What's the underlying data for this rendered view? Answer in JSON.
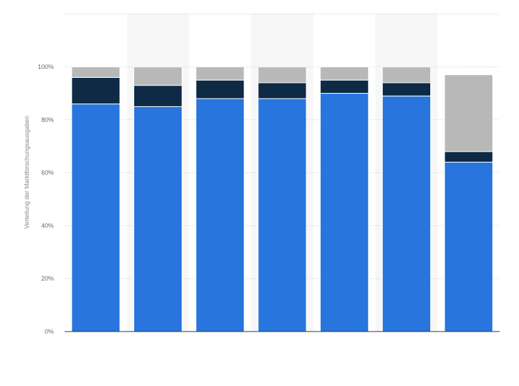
{
  "chart_data": {
    "type": "bar",
    "stacked": true,
    "title": "",
    "xlabel": "",
    "ylabel": "Verteilung der Marktforschungsausgaben",
    "ylim": [
      0,
      100
    ],
    "y_ticks": [
      "0%",
      "20%",
      "40%",
      "60%",
      "80%",
      "100%"
    ],
    "y_tick_values": [
      0,
      20,
      40,
      60,
      80,
      100
    ],
    "grid": true,
    "legend": "none",
    "category_count": 7,
    "series": [
      {
        "values": [
          86,
          85,
          88,
          88,
          90,
          89,
          64
        ],
        "color": "#2775dd"
      },
      {
        "values": [
          10,
          8,
          7,
          6,
          5,
          5,
          4
        ],
        "color": "#0e2a45"
      },
      {
        "values": [
          4,
          7,
          5,
          6,
          5,
          6,
          29
        ],
        "color": "#b8b8b8"
      }
    ],
    "colors": {
      "band": "#f7f7f7",
      "grid": "#d9d9d9",
      "axis": "#333333"
    }
  }
}
